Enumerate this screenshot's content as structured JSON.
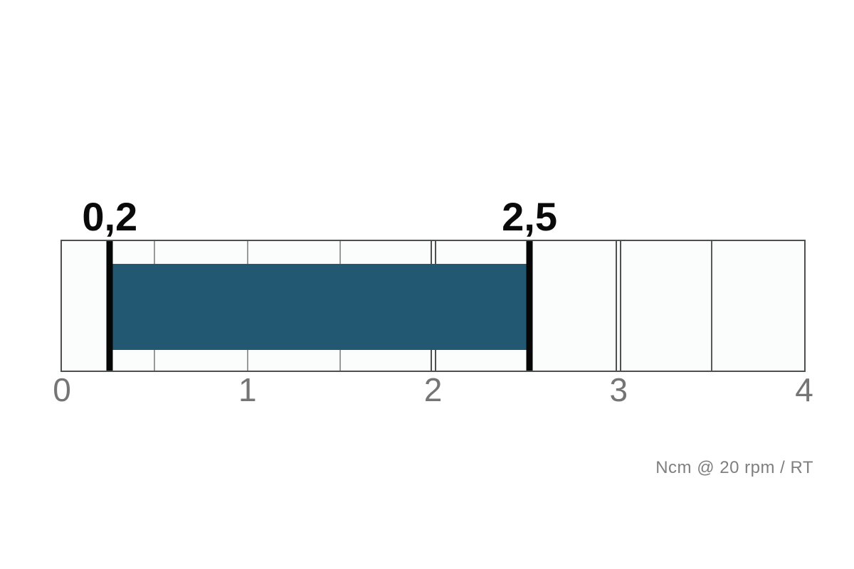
{
  "chart_data": {
    "type": "bar",
    "subtype": "horizontal-range-bar",
    "title": "",
    "unit_label": "Ncm @ 20 rpm / RT",
    "axis": {
      "min": 0,
      "max": 4,
      "ticks": [
        0,
        1,
        2,
        3,
        4
      ],
      "tick_labels": [
        "0",
        "1",
        "2",
        "3",
        "4"
      ],
      "grid": true,
      "grid_step": 0.5
    },
    "range": {
      "min": 0.2,
      "max": 2.5,
      "min_label": "0,2",
      "max_label": "2,5"
    },
    "gridlines": [
      {
        "value": 0.5,
        "style": "light"
      },
      {
        "value": 1.0,
        "style": "light"
      },
      {
        "value": 1.5,
        "style": "light"
      },
      {
        "value": 2.0,
        "style": "double"
      },
      {
        "value": 3.0,
        "style": "double"
      },
      {
        "value": 3.5,
        "style": "dark"
      }
    ],
    "colors": {
      "bar": "#225872",
      "marker": "#060606",
      "box_border": "#4f4f4f",
      "grid_light": "#999999",
      "grid_dark": "#5a5a5a",
      "tick_text": "#757575",
      "unit_text": "#7f7f7f",
      "value_text": "#0a0a0a",
      "cell_fill": "#fbfdfd",
      "background": "#ffffff"
    },
    "layout_hints": {
      "marker_pct": [
        6.45,
        63.0
      ],
      "bar_top_pct": 17.7,
      "bar_height_pct": 66.1,
      "legend": "none"
    }
  }
}
